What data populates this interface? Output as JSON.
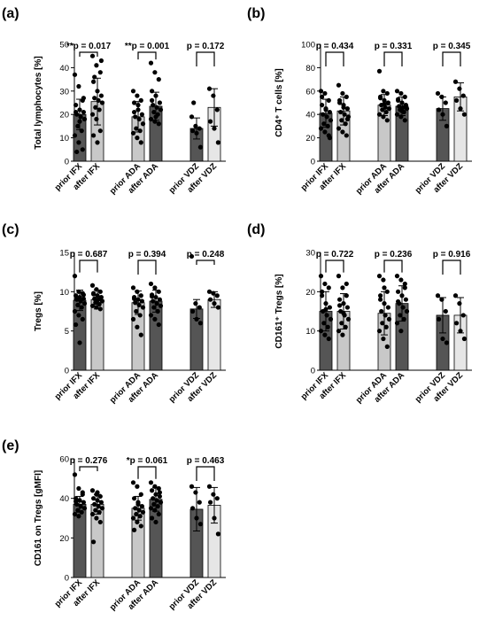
{
  "colors": {
    "dark": "#555555",
    "light": "#c8c8c8",
    "lighter": "#e6e6e6",
    "dot": "#000000"
  },
  "chart_data": [
    {
      "type": "bar",
      "panel": "(a)",
      "ylabel": "Total lymphocytes [%]",
      "ylim": [
        0,
        50
      ],
      "yticks": [
        0,
        10,
        20,
        30,
        40,
        50
      ],
      "categories": [
        "prior IFX",
        "after IFX",
        "prior ADA",
        "after ADA",
        "prior VDZ",
        "after VDZ"
      ],
      "bar_colors": [
        "dark",
        "light",
        "light",
        "dark",
        "dark",
        "lighter"
      ],
      "means": [
        20.0,
        25.5,
        19.0,
        23.5,
        14.0,
        23.0
      ],
      "sd": [
        6.5,
        10.0,
        6.5,
        6.0,
        4.5,
        8.0
      ],
      "points": [
        [
          37,
          32,
          26,
          24,
          22,
          21,
          20,
          19,
          18,
          15,
          13,
          11,
          8,
          5,
          21,
          17,
          27,
          4
        ],
        [
          45,
          41,
          38,
          34,
          30,
          28,
          27,
          26,
          25,
          23,
          22,
          20,
          18,
          13,
          11,
          8,
          43,
          36
        ],
        [
          30,
          28,
          26,
          25,
          22,
          20,
          19,
          18,
          16,
          14,
          13,
          12,
          10,
          8,
          21,
          24
        ],
        [
          42,
          38,
          35,
          30,
          28,
          25,
          24,
          23,
          22,
          21,
          20,
          18,
          17,
          16,
          26,
          19
        ],
        [
          19,
          15,
          14,
          13,
          12,
          6,
          25
        ],
        [
          31,
          28,
          22,
          17,
          14,
          8
        ]
      ],
      "comparisons": [
        {
          "pair": [
            0,
            1
          ],
          "label": "**p = 0.017"
        },
        {
          "pair": [
            2,
            3
          ],
          "label": "**p = 0.001"
        },
        {
          "pair": [
            4,
            5
          ],
          "label": "p = 0.172"
        }
      ]
    },
    {
      "type": "bar",
      "panel": "(b)",
      "ylabel": "CD4⁺ T cells [%]",
      "ylim": [
        0,
        100
      ],
      "yticks": [
        0,
        20,
        40,
        60,
        80,
        100
      ],
      "categories": [
        "prior IFX",
        "after IFX",
        "prior ADA",
        "after ADA",
        "prior VDZ",
        "after VDZ"
      ],
      "bar_colors": [
        "dark",
        "light",
        "light",
        "dark",
        "dark",
        "lighter"
      ],
      "means": [
        41,
        43,
        48,
        47,
        45,
        55
      ],
      "sd": [
        12,
        12,
        9,
        8,
        10,
        12
      ],
      "points": [
        [
          60,
          58,
          52,
          48,
          45,
          42,
          40,
          38,
          35,
          32,
          30,
          28,
          25,
          22,
          55,
          44,
          20
        ],
        [
          65,
          58,
          55,
          50,
          48,
          45,
          42,
          40,
          38,
          35,
          32,
          28,
          25,
          22,
          52,
          46,
          36
        ],
        [
          77,
          60,
          58,
          55,
          52,
          50,
          48,
          46,
          45,
          44,
          42,
          40,
          38,
          35,
          54,
          49
        ],
        [
          60,
          58,
          55,
          52,
          50,
          48,
          47,
          46,
          45,
          44,
          42,
          40,
          38,
          35,
          53,
          43
        ],
        [
          58,
          55,
          50,
          44,
          40,
          30
        ],
        [
          68,
          62,
          56,
          52,
          45,
          40
        ]
      ],
      "comparisons": [
        {
          "pair": [
            0,
            1
          ],
          "label": "p = 0.434"
        },
        {
          "pair": [
            2,
            3
          ],
          "label": "p = 0.331"
        },
        {
          "pair": [
            4,
            5
          ],
          "label": "p = 0.345"
        }
      ]
    },
    {
      "type": "bar",
      "panel": "(c)",
      "ylabel": "Tregs [%]",
      "ylim": [
        0,
        15
      ],
      "yticks": [
        0,
        5,
        10,
        15
      ],
      "categories": [
        "prior IFX",
        "after IFX",
        "prior ADA",
        "after ADA",
        "prior VDZ",
        "after VDZ"
      ],
      "bar_colors": [
        "dark",
        "light",
        "light",
        "dark",
        "dark",
        "lighter"
      ],
      "means": [
        8.9,
        9.0,
        8.6,
        8.8,
        7.8,
        9.0
      ],
      "sd": [
        1.3,
        1.2,
        1.5,
        1.4,
        1.2,
        1.0
      ],
      "points": [
        [
          12,
          10,
          9.8,
          9.5,
          9.3,
          9.1,
          9,
          8.8,
          8.5,
          8.3,
          8,
          7.5,
          7,
          6.5,
          5.8,
          3.5,
          9.6
        ],
        [
          10.8,
          10.3,
          10,
          9.8,
          9.5,
          9.3,
          9.1,
          9,
          8.8,
          8.6,
          8.4,
          8.2,
          8,
          7.8,
          9.7,
          8.9
        ],
        [
          10.5,
          10,
          9.5,
          9.3,
          9,
          8.8,
          8.6,
          8.3,
          8,
          7.5,
          7,
          6.5,
          5.5,
          4.5,
          9.1
        ],
        [
          11,
          10.5,
          10,
          9.6,
          9.3,
          9,
          8.8,
          8.5,
          8.2,
          8,
          7.5,
          7,
          6.5,
          5.8,
          9.4
        ],
        [
          14.5,
          8.5,
          8,
          7.5,
          6.5,
          6
        ],
        [
          10,
          9.8,
          9.5,
          9,
          8.5,
          8
        ]
      ],
      "comparisons": [
        {
          "pair": [
            0,
            1
          ],
          "label": "p = 0.687"
        },
        {
          "pair": [
            2,
            3
          ],
          "label": "p = 0.394"
        },
        {
          "pair": [
            4,
            5
          ],
          "label": "p = 0.248"
        }
      ]
    },
    {
      "type": "bar",
      "panel": "(d)",
      "ylabel": "CD161⁺ Tregs [%]",
      "ylim": [
        0,
        30
      ],
      "yticks": [
        0,
        10,
        20,
        30
      ],
      "categories": [
        "prior IFX",
        "after IFX",
        "prior ADA",
        "after ADA",
        "prior VDZ",
        "after VDZ"
      ],
      "bar_colors": [
        "dark",
        "light",
        "light",
        "dark",
        "dark",
        "lighter"
      ],
      "means": [
        15,
        15,
        14.5,
        17,
        14,
        14
      ],
      "sd": [
        5,
        4.5,
        5.5,
        4.5,
        4.5,
        4.5
      ],
      "points": [
        [
          24,
          22,
          21,
          19,
          17,
          16,
          15,
          14,
          13,
          12,
          11,
          10,
          9,
          8,
          20,
          15.5
        ],
        [
          24,
          21,
          19,
          18,
          17,
          16,
          15,
          14,
          13,
          12,
          11,
          10,
          9,
          22,
          16.5,
          14.5
        ],
        [
          24,
          23,
          20,
          19,
          17,
          16,
          15,
          14,
          13,
          12,
          11,
          10,
          8,
          6,
          18,
          21
        ],
        [
          24,
          23,
          22,
          20,
          19,
          18,
          17,
          16,
          15,
          14,
          13,
          12,
          10,
          21,
          17.5
        ],
        [
          19,
          18,
          15,
          13,
          8,
          7
        ],
        [
          19,
          17,
          14,
          12,
          10,
          8
        ]
      ],
      "comparisons": [
        {
          "pair": [
            0,
            1
          ],
          "label": "p = 0.722"
        },
        {
          "pair": [
            2,
            3
          ],
          "label": "p = 0.236"
        },
        {
          "pair": [
            4,
            5
          ],
          "label": "p = 0.916"
        }
      ]
    },
    {
      "type": "bar",
      "panel": "(e)",
      "ylabel": "CD161 on Tregs [gMFI]",
      "ylim": [
        0,
        60
      ],
      "yticks": [
        0,
        20,
        40,
        60
      ],
      "categories": [
        "prior IFX",
        "after IFX",
        "prior ADA",
        "after ADA",
        "prior VDZ",
        "after VDZ"
      ],
      "bar_colors": [
        "dark",
        "light",
        "light",
        "dark",
        "dark",
        "lighter"
      ],
      "means": [
        37,
        37,
        35,
        39.5,
        34.5,
        36.5
      ],
      "sd": [
        4,
        5,
        6,
        6,
        11,
        9
      ],
      "points": [
        [
          52,
          45,
          42,
          40,
          39,
          38,
          37,
          36,
          35,
          34,
          33,
          32,
          31,
          43,
          38.5
        ],
        [
          44,
          42,
          41,
          40,
          39,
          38,
          37,
          36,
          35,
          34,
          33,
          32,
          30,
          28,
          18,
          43
        ],
        [
          48,
          46,
          42,
          40,
          38,
          36,
          35,
          34,
          33,
          32,
          31,
          30,
          28,
          26,
          24,
          37
        ],
        [
          48,
          46,
          45,
          44,
          42,
          41,
          40,
          39,
          38,
          37,
          36,
          35,
          34,
          32,
          30,
          28,
          43
        ],
        [
          46,
          43,
          38,
          35,
          30,
          27
        ],
        [
          46,
          42,
          40,
          38,
          30,
          22
        ]
      ],
      "comparisons": [
        {
          "pair": [
            0,
            1
          ],
          "label": "p = 0.276"
        },
        {
          "pair": [
            2,
            3
          ],
          "label": "*p = 0.061"
        },
        {
          "pair": [
            4,
            5
          ],
          "label": "p = 0.463"
        }
      ]
    }
  ]
}
